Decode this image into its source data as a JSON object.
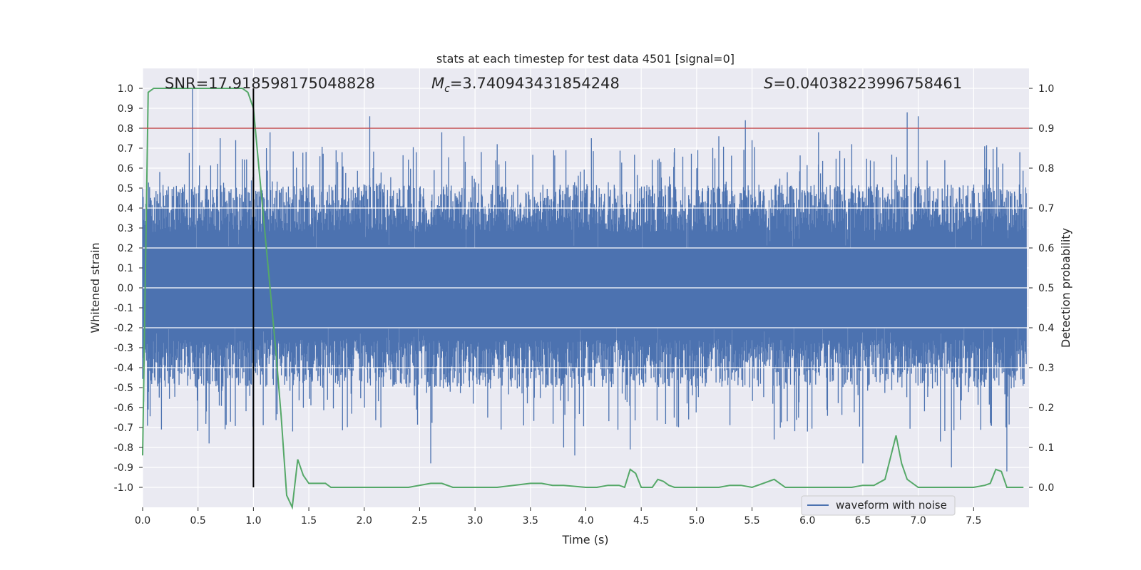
{
  "chart_data": {
    "type": "line",
    "title": "stats at each timestep for test data 4501 [signal=0]",
    "xlabel": "Time (s)",
    "ylabel": "Whitened strain",
    "y2label": "Detection probability",
    "xlim": [
      0.0,
      8.0
    ],
    "ylim": [
      -1.1,
      1.1
    ],
    "y2lim": [
      -0.05,
      1.05
    ],
    "xticks": [
      "0.0",
      "0.5",
      "1.0",
      "1.5",
      "2.0",
      "2.5",
      "3.0",
      "3.5",
      "4.0",
      "4.5",
      "5.0",
      "5.5",
      "6.0",
      "6.5",
      "7.0",
      "7.5"
    ],
    "xtick_values": [
      0.0,
      0.5,
      1.0,
      1.5,
      2.0,
      2.5,
      3.0,
      3.5,
      4.0,
      4.5,
      5.0,
      5.5,
      6.0,
      6.5,
      7.0,
      7.5
    ],
    "yticks": [
      "1.0",
      "0.9",
      "0.8",
      "0.7",
      "0.6",
      "0.5",
      "0.4",
      "0.3",
      "0.2",
      "0.1",
      "0.0",
      "-0.1",
      "-0.2",
      "-0.3",
      "-0.4",
      "-0.5",
      "-0.6",
      "-0.7",
      "-0.8",
      "-0.9",
      "-1.0"
    ],
    "ytick_values": [
      1.0,
      0.9,
      0.8,
      0.7,
      0.6,
      0.5,
      0.4,
      0.3,
      0.2,
      0.1,
      0.0,
      -0.1,
      -0.2,
      -0.3,
      -0.4,
      -0.5,
      -0.6,
      -0.7,
      -0.8,
      -0.9,
      -1.0
    ],
    "y2ticks": [
      "1.0",
      "0.9",
      "0.8",
      "0.7",
      "0.6",
      "0.5",
      "0.4",
      "0.3",
      "0.2",
      "0.1",
      "0.0"
    ],
    "y2tick_values": [
      1.0,
      0.9,
      0.8,
      0.7,
      0.6,
      0.5,
      0.4,
      0.3,
      0.2,
      0.1,
      0.0
    ],
    "grid": true,
    "legend": {
      "position": "lower-right",
      "entries": [
        "waveform with noise"
      ]
    },
    "annotations": {
      "snr": "SNR=17.918598175048828",
      "mc_symbol": "M",
      "mc_sub": "c",
      "mc_value": "=3.740943431854248",
      "s_symbol": "S",
      "s_value": "=0.04038223996758461"
    },
    "threshold_y2": 0.9,
    "vertical_marker_x": 1.0,
    "series": [
      {
        "name": "waveform with noise",
        "color": "#4c72b0",
        "kind": "noise",
        "peaks": [
          [
            0.05,
            -0.61
          ],
          [
            0.15,
            -0.55
          ],
          [
            0.17,
            -0.71
          ],
          [
            0.45,
            1.0
          ],
          [
            0.6,
            -0.78
          ],
          [
            0.7,
            0.75
          ],
          [
            0.84,
            0.74
          ],
          [
            1.0,
            -0.73
          ],
          [
            1.15,
            0.78
          ],
          [
            1.6,
            0.66
          ],
          [
            1.8,
            0.68
          ],
          [
            2.05,
            0.86
          ],
          [
            2.15,
            -0.7
          ],
          [
            2.47,
            0.68
          ],
          [
            2.6,
            -0.88
          ],
          [
            2.7,
            0.78
          ],
          [
            2.9,
            0.76
          ],
          [
            3.2,
            0.72
          ],
          [
            3.8,
            -0.8
          ],
          [
            3.9,
            -0.84
          ],
          [
            4.05,
            0.75
          ],
          [
            4.4,
            -0.81
          ],
          [
            4.65,
            0.64
          ],
          [
            4.8,
            0.7
          ],
          [
            5.2,
            0.76
          ],
          [
            5.44,
            0.84
          ],
          [
            5.5,
            0.74
          ],
          [
            5.7,
            -0.76
          ],
          [
            6.0,
            -0.72
          ],
          [
            6.1,
            0.78
          ],
          [
            6.4,
            0.72
          ],
          [
            6.5,
            -0.88
          ],
          [
            6.9,
            0.88
          ],
          [
            7.0,
            0.86
          ],
          [
            7.2,
            -0.77
          ],
          [
            7.3,
            -0.9
          ],
          [
            7.6,
            0.71
          ],
          [
            7.8,
            -0.92
          ]
        ]
      },
      {
        "name": "",
        "color": "#55a868",
        "axis": "right",
        "x": [
          0.0,
          0.05,
          0.1,
          0.15,
          0.2,
          0.3,
          0.4,
          0.5,
          0.6,
          0.7,
          0.8,
          0.9,
          0.95,
          1.0,
          1.05,
          1.1,
          1.15,
          1.2,
          1.25,
          1.3,
          1.35,
          1.4,
          1.45,
          1.5,
          1.55,
          1.6,
          1.65,
          1.7,
          1.75,
          1.8,
          1.9,
          2.0,
          2.2,
          2.3,
          2.4,
          2.6,
          2.7,
          2.8,
          2.9,
          3.0,
          3.2,
          3.5,
          3.6,
          3.7,
          3.8,
          4.0,
          4.1,
          4.2,
          4.3,
          4.35,
          4.4,
          4.45,
          4.5,
          4.55,
          4.6,
          4.65,
          4.7,
          4.75,
          4.8,
          4.9,
          5.0,
          5.2,
          5.3,
          5.4,
          5.5,
          5.6,
          5.7,
          5.75,
          5.8,
          6.0,
          6.2,
          6.4,
          6.5,
          6.6,
          6.7,
          6.8,
          6.85,
          6.9,
          7.0,
          7.2,
          7.4,
          7.5,
          7.6,
          7.65,
          7.7,
          7.75,
          7.8,
          7.85,
          7.9,
          7.95
        ],
        "values": [
          0.08,
          0.99,
          1.0,
          1.0,
          1.0,
          1.0,
          1.0,
          1.0,
          1.0,
          1.0,
          1.0,
          1.0,
          0.99,
          0.95,
          0.8,
          0.65,
          0.5,
          0.35,
          0.18,
          -0.02,
          -0.05,
          0.07,
          0.03,
          0.01,
          0.01,
          0.01,
          0.01,
          0.0,
          0.0,
          0.0,
          0.0,
          0.0,
          0.0,
          0.0,
          0.0,
          0.01,
          0.01,
          0.0,
          0.0,
          0.0,
          0.0,
          0.01,
          0.01,
          0.005,
          0.005,
          0.0,
          0.0,
          0.005,
          0.005,
          0.0,
          0.045,
          0.035,
          0.0,
          0.0,
          0.0,
          0.02,
          0.015,
          0.005,
          0.0,
          0.0,
          0.0,
          0.0,
          0.005,
          0.005,
          0.0,
          0.01,
          0.02,
          0.01,
          0.0,
          0.0,
          0.0,
          0.0,
          0.005,
          0.005,
          0.02,
          0.13,
          0.06,
          0.02,
          0.0,
          0.0,
          0.0,
          0.0,
          0.005,
          0.01,
          0.045,
          0.04,
          0.0,
          0.0,
          0.0,
          0.0
        ]
      }
    ]
  }
}
